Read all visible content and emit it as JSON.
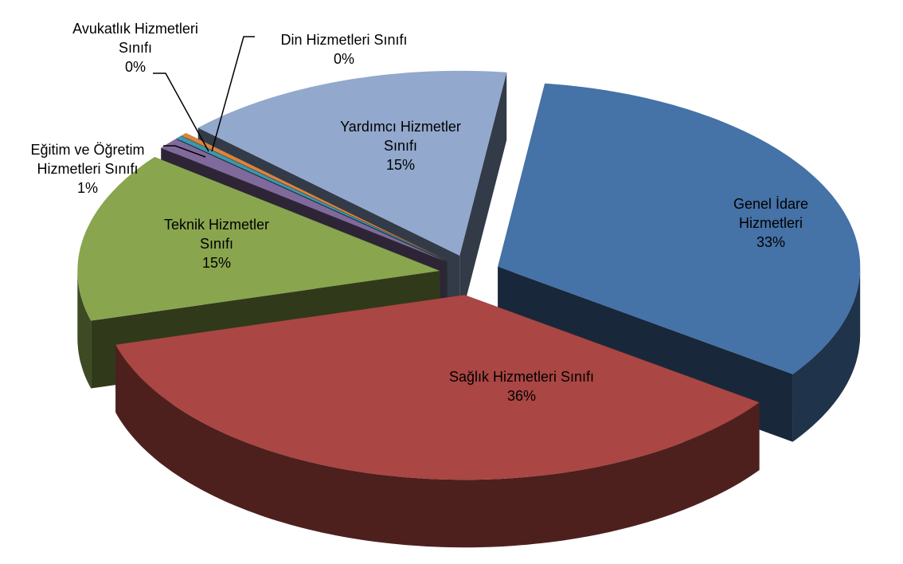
{
  "chart_data": {
    "type": "pie3d",
    "categories": [
      "Genel İdare Hizmetleri",
      "Sağlık Hizmetleri Sınıfı",
      "Teknik Hizmetler Sınıfı",
      "Eğitim ve Öğretim Hizmetleri Sınıfı",
      "Avukatlık Hizmetleri Sınıfı",
      "Din Hizmetleri Sınıfı",
      "Yardımcı Hizmetler Sınıfı"
    ],
    "values": [
      33,
      36,
      15,
      1,
      0.3,
      0.3,
      15
    ],
    "value_labels": [
      "33%",
      "36%",
      "15%",
      "1%",
      "0%",
      "0%",
      "15%"
    ],
    "colors": [
      "#4572a7",
      "#aa4643",
      "#89a54e",
      "#80699b",
      "#3d96ae",
      "#db843d",
      "#92a8cd"
    ]
  }
}
